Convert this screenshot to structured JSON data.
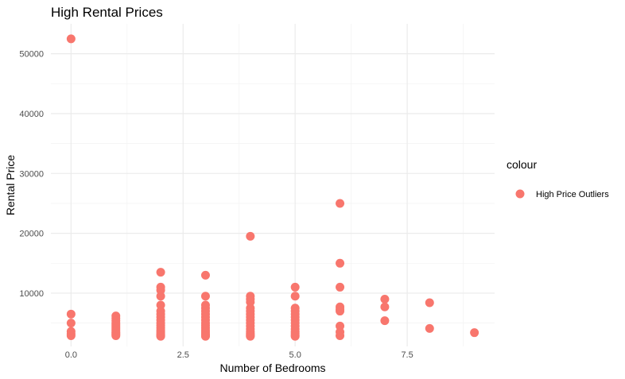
{
  "chart_data": {
    "type": "scatter",
    "title": "High Rental Prices",
    "xlabel": "Number of Bedrooms",
    "ylabel": "Rental Price",
    "xlim": [
      -0.45,
      9.45
    ],
    "ylim": [
      1100,
      55000
    ],
    "x_ticks": [
      0,
      2.5,
      5,
      7.5
    ],
    "x_tick_labels": [
      "0.0",
      "2.5",
      "5.0",
      "7.5"
    ],
    "x_minor_ticks": [
      1.25,
      3.75,
      6.25,
      8.75
    ],
    "y_ticks": [
      10000,
      20000,
      30000,
      40000,
      50000
    ],
    "y_tick_labels": [
      "10000",
      "20000",
      "30000",
      "40000",
      "50000"
    ],
    "y_minor_ticks": [
      5000,
      15000,
      25000,
      35000,
      45000
    ],
    "grid": true,
    "legend": {
      "title": "colour",
      "position": "right",
      "entries": [
        {
          "label": "High Price Outliers",
          "color": "#f8766d"
        }
      ]
    },
    "series": [
      {
        "name": "High Price Outliers",
        "color": "#f8766d",
        "x": [
          0,
          0,
          0,
          0,
          0,
          0,
          1,
          1,
          1,
          1,
          1,
          1,
          1,
          1,
          1,
          1,
          1,
          1,
          2,
          2,
          2,
          2,
          2,
          2,
          2,
          2,
          2,
          2,
          2,
          2,
          2,
          2,
          2,
          2,
          2,
          2,
          3,
          3,
          3,
          3,
          3,
          3,
          3,
          3,
          3,
          3,
          3,
          3,
          3,
          3,
          3,
          3,
          3,
          4,
          4,
          4,
          4,
          4,
          4,
          4,
          4,
          4,
          4,
          4,
          4,
          4,
          4,
          4,
          4,
          4,
          5,
          5,
          5,
          5,
          5,
          5,
          5,
          5,
          5,
          5,
          5,
          5,
          5,
          5,
          6,
          6,
          6,
          6,
          6,
          6,
          6,
          6,
          6,
          7,
          7,
          7,
          8,
          8,
          9
        ],
        "y": [
          52500,
          6500,
          5000,
          3600,
          3200,
          2900,
          6200,
          5800,
          5400,
          5000,
          4700,
          4400,
          4100,
          3800,
          3500,
          3300,
          3100,
          2900,
          13500,
          11000,
          10500,
          9500,
          8000,
          7000,
          6500,
          6000,
          5500,
          5000,
          4600,
          4200,
          3800,
          3500,
          3200,
          3000,
          2900,
          2800,
          13000,
          9500,
          8000,
          7500,
          7000,
          6500,
          6000,
          5500,
          5000,
          4600,
          4200,
          3800,
          3500,
          3200,
          3000,
          2900,
          2800,
          19500,
          9500,
          9000,
          8500,
          7500,
          7000,
          6500,
          6000,
          5500,
          5000,
          4500,
          4000,
          3600,
          3300,
          3100,
          2900,
          2800,
          11000,
          9500,
          7500,
          7000,
          6500,
          6000,
          5500,
          5000,
          4500,
          4000,
          3600,
          3300,
          3000,
          2800,
          25000,
          15000,
          11000,
          7700,
          7300,
          7000,
          4500,
          3500,
          2900,
          9000,
          7700,
          5400,
          8400,
          4100,
          3400
        ]
      }
    ]
  }
}
